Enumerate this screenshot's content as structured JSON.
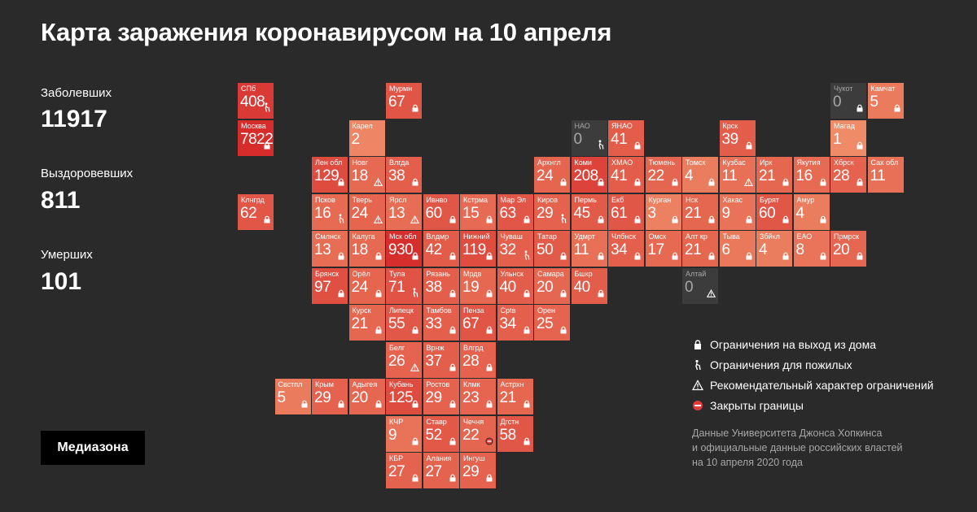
{
  "title": "Карта заражения коронавирусом на 10 апреля",
  "stats": {
    "cases_label": "Заболевших",
    "cases_value": "11917",
    "recovered_label": "Выздоровевших",
    "recovered_value": "811",
    "deaths_label": "Умерших",
    "deaths_value": "101"
  },
  "legend": {
    "lock": "Ограничения на выход из дома",
    "elderly": "Ограничения для пожилых",
    "advisory": "Рекомендательный характер ограничений",
    "closed": "Закрыты границы"
  },
  "source": {
    "line1": "Данные Университета Джонса Хопкинса",
    "line2": "и официальные данные российских властей",
    "line3": "на 10 апреля 2020 года"
  },
  "logo": "Медиазона",
  "colors": {
    "background": "#2a2a2a",
    "tile_high": "#d9312c",
    "tile_mid": "#e8533c",
    "tile_low": "#f2906c",
    "tile_zero": "#3c3c3c"
  },
  "regions": [
    {
      "name": "СПб",
      "value": 408,
      "col": 0,
      "row": 0,
      "marker": "elderly"
    },
    {
      "name": "Москва",
      "value": 7822,
      "col": 0,
      "row": 1,
      "marker": "lock"
    },
    {
      "name": "Мурмн",
      "value": 67,
      "col": 4,
      "row": 0,
      "marker": "lock"
    },
    {
      "name": "Карел",
      "value": 2,
      "col": 3,
      "row": 1,
      "marker": ""
    },
    {
      "name": "Чукот",
      "value": 0,
      "col": 16,
      "row": 0,
      "marker": "lock"
    },
    {
      "name": "Камчат",
      "value": 5,
      "col": 17,
      "row": 0,
      "marker": "lock"
    },
    {
      "name": "НАО",
      "value": 0,
      "col": 9,
      "row": 1,
      "marker": "elderly"
    },
    {
      "name": "ЯНАО",
      "value": 41,
      "col": 10,
      "row": 1,
      "marker": "lock"
    },
    {
      "name": "Крск",
      "value": 39,
      "col": 13,
      "row": 1,
      "marker": "lock"
    },
    {
      "name": "Магад",
      "value": 1,
      "col": 16,
      "row": 1,
      "marker": "lock"
    },
    {
      "name": "Лен обл",
      "value": 129,
      "col": 2,
      "row": 2,
      "marker": "lock"
    },
    {
      "name": "Новг",
      "value": 18,
      "col": 3,
      "row": 2,
      "marker": "advisory"
    },
    {
      "name": "Влгда",
      "value": 38,
      "col": 4,
      "row": 2,
      "marker": "lock"
    },
    {
      "name": "Архнгл",
      "value": 24,
      "col": 8,
      "row": 2,
      "marker": "lock"
    },
    {
      "name": "Коми",
      "value": 208,
      "col": 9,
      "row": 2,
      "marker": "lock"
    },
    {
      "name": "ХМАО",
      "value": 41,
      "col": 10,
      "row": 2,
      "marker": "lock"
    },
    {
      "name": "Тюмень",
      "value": 22,
      "col": 11,
      "row": 2,
      "marker": "lock"
    },
    {
      "name": "Томск",
      "value": 4,
      "col": 12,
      "row": 2,
      "marker": "lock"
    },
    {
      "name": "Кузбас",
      "value": 11,
      "col": 13,
      "row": 2,
      "marker": "advisory"
    },
    {
      "name": "Ирк",
      "value": 21,
      "col": 14,
      "row": 2,
      "marker": "lock"
    },
    {
      "name": "Якутия",
      "value": 16,
      "col": 15,
      "row": 2,
      "marker": "lock"
    },
    {
      "name": "Хбрск",
      "value": 28,
      "col": 16,
      "row": 2,
      "marker": "lock"
    },
    {
      "name": "Сах обл",
      "value": 11,
      "col": 17,
      "row": 2,
      "marker": ""
    },
    {
      "name": "Клнгрд",
      "value": 62,
      "col": 0,
      "row": 3,
      "marker": "lock"
    },
    {
      "name": "Псков",
      "value": 16,
      "col": 2,
      "row": 3,
      "marker": "elderly"
    },
    {
      "name": "Тверь",
      "value": 24,
      "col": 3,
      "row": 3,
      "marker": "advisory"
    },
    {
      "name": "Ярсл",
      "value": 13,
      "col": 4,
      "row": 3,
      "marker": "advisory"
    },
    {
      "name": "Ивнво",
      "value": 60,
      "col": 5,
      "row": 3,
      "marker": "lock"
    },
    {
      "name": "Кстрма",
      "value": 15,
      "col": 6,
      "row": 3,
      "marker": "lock"
    },
    {
      "name": "Мар Эл",
      "value": 63,
      "col": 7,
      "row": 3,
      "marker": "lock"
    },
    {
      "name": "Киров",
      "value": 29,
      "col": 8,
      "row": 3,
      "marker": "elderly"
    },
    {
      "name": "Пермь",
      "value": 45,
      "col": 9,
      "row": 3,
      "marker": "lock"
    },
    {
      "name": "Екб",
      "value": 61,
      "col": 10,
      "row": 3,
      "marker": "lock"
    },
    {
      "name": "Курган",
      "value": 3,
      "col": 11,
      "row": 3,
      "marker": "lock"
    },
    {
      "name": "Нск",
      "value": 21,
      "col": 12,
      "row": 3,
      "marker": "lock"
    },
    {
      "name": "Хакас",
      "value": 9,
      "col": 13,
      "row": 3,
      "marker": "lock"
    },
    {
      "name": "Бурят",
      "value": 60,
      "col": 14,
      "row": 3,
      "marker": "lock"
    },
    {
      "name": "Амур",
      "value": 4,
      "col": 15,
      "row": 3,
      "marker": "lock"
    },
    {
      "name": "Смлнск",
      "value": 13,
      "col": 2,
      "row": 4,
      "marker": "lock"
    },
    {
      "name": "Калуга",
      "value": 18,
      "col": 3,
      "row": 4,
      "marker": "lock"
    },
    {
      "name": "Мск обл",
      "value": 930,
      "col": 4,
      "row": 4,
      "marker": "lock"
    },
    {
      "name": "Влдмр",
      "value": 42,
      "col": 5,
      "row": 4,
      "marker": "lock"
    },
    {
      "name": "Нижний",
      "value": 119,
      "col": 6,
      "row": 4,
      "marker": "lock"
    },
    {
      "name": "Чуваш",
      "value": 32,
      "col": 7,
      "row": 4,
      "marker": "elderly"
    },
    {
      "name": "Татар",
      "value": 50,
      "col": 8,
      "row": 4,
      "marker": "lock"
    },
    {
      "name": "Удмрт",
      "value": 11,
      "col": 9,
      "row": 4,
      "marker": "lock"
    },
    {
      "name": "Члбнск",
      "value": 34,
      "col": 10,
      "row": 4,
      "marker": "lock"
    },
    {
      "name": "Омск",
      "value": 17,
      "col": 11,
      "row": 4,
      "marker": "lock"
    },
    {
      "name": "Алт кр",
      "value": 21,
      "col": 12,
      "row": 4,
      "marker": "lock"
    },
    {
      "name": "Тыва",
      "value": 6,
      "col": 13,
      "row": 4,
      "marker": "lock"
    },
    {
      "name": "Збйкл",
      "value": 4,
      "col": 14,
      "row": 4,
      "marker": "lock"
    },
    {
      "name": "ЕАО",
      "value": 8,
      "col": 15,
      "row": 4,
      "marker": "lock"
    },
    {
      "name": "Прмрск",
      "value": 20,
      "col": 16,
      "row": 4,
      "marker": "lock"
    },
    {
      "name": "Брянск",
      "value": 97,
      "col": 2,
      "row": 5,
      "marker": "lock"
    },
    {
      "name": "Орёл",
      "value": 24,
      "col": 3,
      "row": 5,
      "marker": "lock"
    },
    {
      "name": "Тула",
      "value": 71,
      "col": 4,
      "row": 5,
      "marker": "elderly"
    },
    {
      "name": "Рязань",
      "value": 38,
      "col": 5,
      "row": 5,
      "marker": "lock"
    },
    {
      "name": "Мрдв",
      "value": 19,
      "col": 6,
      "row": 5,
      "marker": "lock"
    },
    {
      "name": "Ульнск",
      "value": 40,
      "col": 7,
      "row": 5,
      "marker": "lock"
    },
    {
      "name": "Самара",
      "value": 20,
      "col": 8,
      "row": 5,
      "marker": "lock"
    },
    {
      "name": "Бшкр",
      "value": 40,
      "col": 9,
      "row": 5,
      "marker": "lock"
    },
    {
      "name": "Алтай",
      "value": 0,
      "col": 12,
      "row": 5,
      "marker": "advisory"
    },
    {
      "name": "Курск",
      "value": 21,
      "col": 3,
      "row": 6,
      "marker": "lock"
    },
    {
      "name": "Липецк",
      "value": 55,
      "col": 4,
      "row": 6,
      "marker": "lock"
    },
    {
      "name": "Тамбов",
      "value": 33,
      "col": 5,
      "row": 6,
      "marker": "lock"
    },
    {
      "name": "Пенза",
      "value": 67,
      "col": 6,
      "row": 6,
      "marker": "lock"
    },
    {
      "name": "Срtв",
      "value": 34,
      "col": 7,
      "row": 6,
      "marker": "lock"
    },
    {
      "name": "Орен",
      "value": 25,
      "col": 8,
      "row": 6,
      "marker": "lock"
    },
    {
      "name": "Белг",
      "value": 26,
      "col": 4,
      "row": 7,
      "marker": "advisory"
    },
    {
      "name": "Врнж",
      "value": 37,
      "col": 5,
      "row": 7,
      "marker": "lock"
    },
    {
      "name": "Влгрд",
      "value": 28,
      "col": 6,
      "row": 7,
      "marker": "lock"
    },
    {
      "name": "Свстпл",
      "value": 5,
      "col": 1,
      "row": 8,
      "marker": "lock"
    },
    {
      "name": "Крым",
      "value": 29,
      "col": 2,
      "row": 8,
      "marker": "lock"
    },
    {
      "name": "Адыгея",
      "value": 20,
      "col": 3,
      "row": 8,
      "marker": "lock"
    },
    {
      "name": "Кубань",
      "value": 125,
      "col": 4,
      "row": 8,
      "marker": "lock"
    },
    {
      "name": "Ростов",
      "value": 29,
      "col": 5,
      "row": 8,
      "marker": "lock"
    },
    {
      "name": "Клмк",
      "value": 23,
      "col": 6,
      "row": 8,
      "marker": "lock"
    },
    {
      "name": "Астрхн",
      "value": 21,
      "col": 7,
      "row": 8,
      "marker": "lock"
    },
    {
      "name": "КЧР",
      "value": 9,
      "col": 4,
      "row": 9,
      "marker": "lock"
    },
    {
      "name": "Ставр",
      "value": 52,
      "col": 5,
      "row": 9,
      "marker": "lock"
    },
    {
      "name": "Чечня",
      "value": 22,
      "col": 6,
      "row": 9,
      "marker": "closed"
    },
    {
      "name": "Дгстн",
      "value": 58,
      "col": 7,
      "row": 9,
      "marker": "lock"
    },
    {
      "name": "КБР",
      "value": 27,
      "col": 4,
      "row": 10,
      "marker": "lock"
    },
    {
      "name": "Алания",
      "value": 27,
      "col": 5,
      "row": 10,
      "marker": "lock"
    },
    {
      "name": "Ингуш",
      "value": 29,
      "col": 6,
      "row": 10,
      "marker": "lock"
    }
  ]
}
